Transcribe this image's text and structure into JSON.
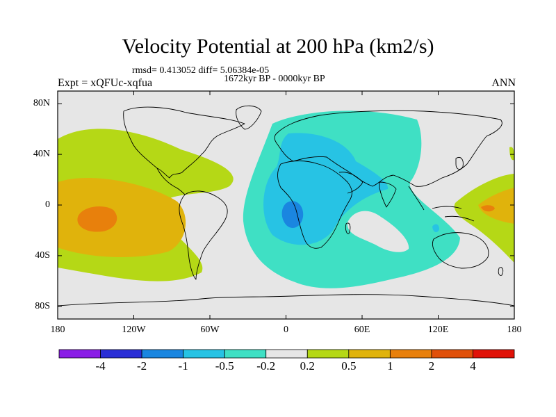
{
  "header": {
    "title": "Velocity Potential at 200 hPa (km2/s)",
    "stats": "rmsd= 0.413052  diff= 5.06384e-05",
    "period": "1672kyr BP - 0000kyr BP",
    "experiment": "Expt = xQFUc-xqfua",
    "season": "ANN"
  },
  "chart_data": {
    "type": "heatmap",
    "projection": "cylindrical-equidistant",
    "title": "Velocity Potential at 200 hPa (km2/s)",
    "units": "km2/s",
    "x_range": [
      -180,
      180
    ],
    "y_range": [
      -90,
      90
    ],
    "x_ticks": [
      {
        "value": -180,
        "label": "180"
      },
      {
        "value": -120,
        "label": "120W"
      },
      {
        "value": -60,
        "label": "60W"
      },
      {
        "value": 0,
        "label": "0"
      },
      {
        "value": 60,
        "label": "60E"
      },
      {
        "value": 120,
        "label": "120E"
      },
      {
        "value": 180,
        "label": "180"
      }
    ],
    "y_ticks": [
      {
        "value": 80,
        "label": "80N"
      },
      {
        "value": 40,
        "label": "40N"
      },
      {
        "value": 0,
        "label": "0"
      },
      {
        "value": -40,
        "label": "40S"
      },
      {
        "value": -80,
        "label": "80S"
      }
    ],
    "contour_levels": [
      -4,
      -2,
      -1,
      -0.5,
      -0.2,
      0.2,
      0.5,
      1,
      2,
      4
    ],
    "colorbar_labels": [
      "-4",
      "-2",
      "-1",
      "-0.5",
      "-0.2",
      "0.2",
      "0.5",
      "1",
      "2",
      "4"
    ],
    "colorbar_colors": [
      "#8a1de6",
      "#2a2ed6",
      "#1a86e0",
      "#27c3e4",
      "#3fe0c4",
      "#e6e6e6",
      "#b5d816",
      "#e0b30c",
      "#e8800c",
      "#e0500a",
      "#e01208"
    ],
    "regions": [
      {
        "name": "Central Pacific positive anomaly",
        "min_level": 1,
        "peak": 2,
        "center": [
          -140,
          -10
        ]
      },
      {
        "name": "Atlantic-Africa-Indian Ocean negative anomaly",
        "min_level": -0.2,
        "peak": -1,
        "center": [
          10,
          5
        ]
      },
      {
        "name": "Western Pacific positive anomaly",
        "min_level": 0.5,
        "peak": 1,
        "center": [
          155,
          0
        ]
      }
    ]
  }
}
